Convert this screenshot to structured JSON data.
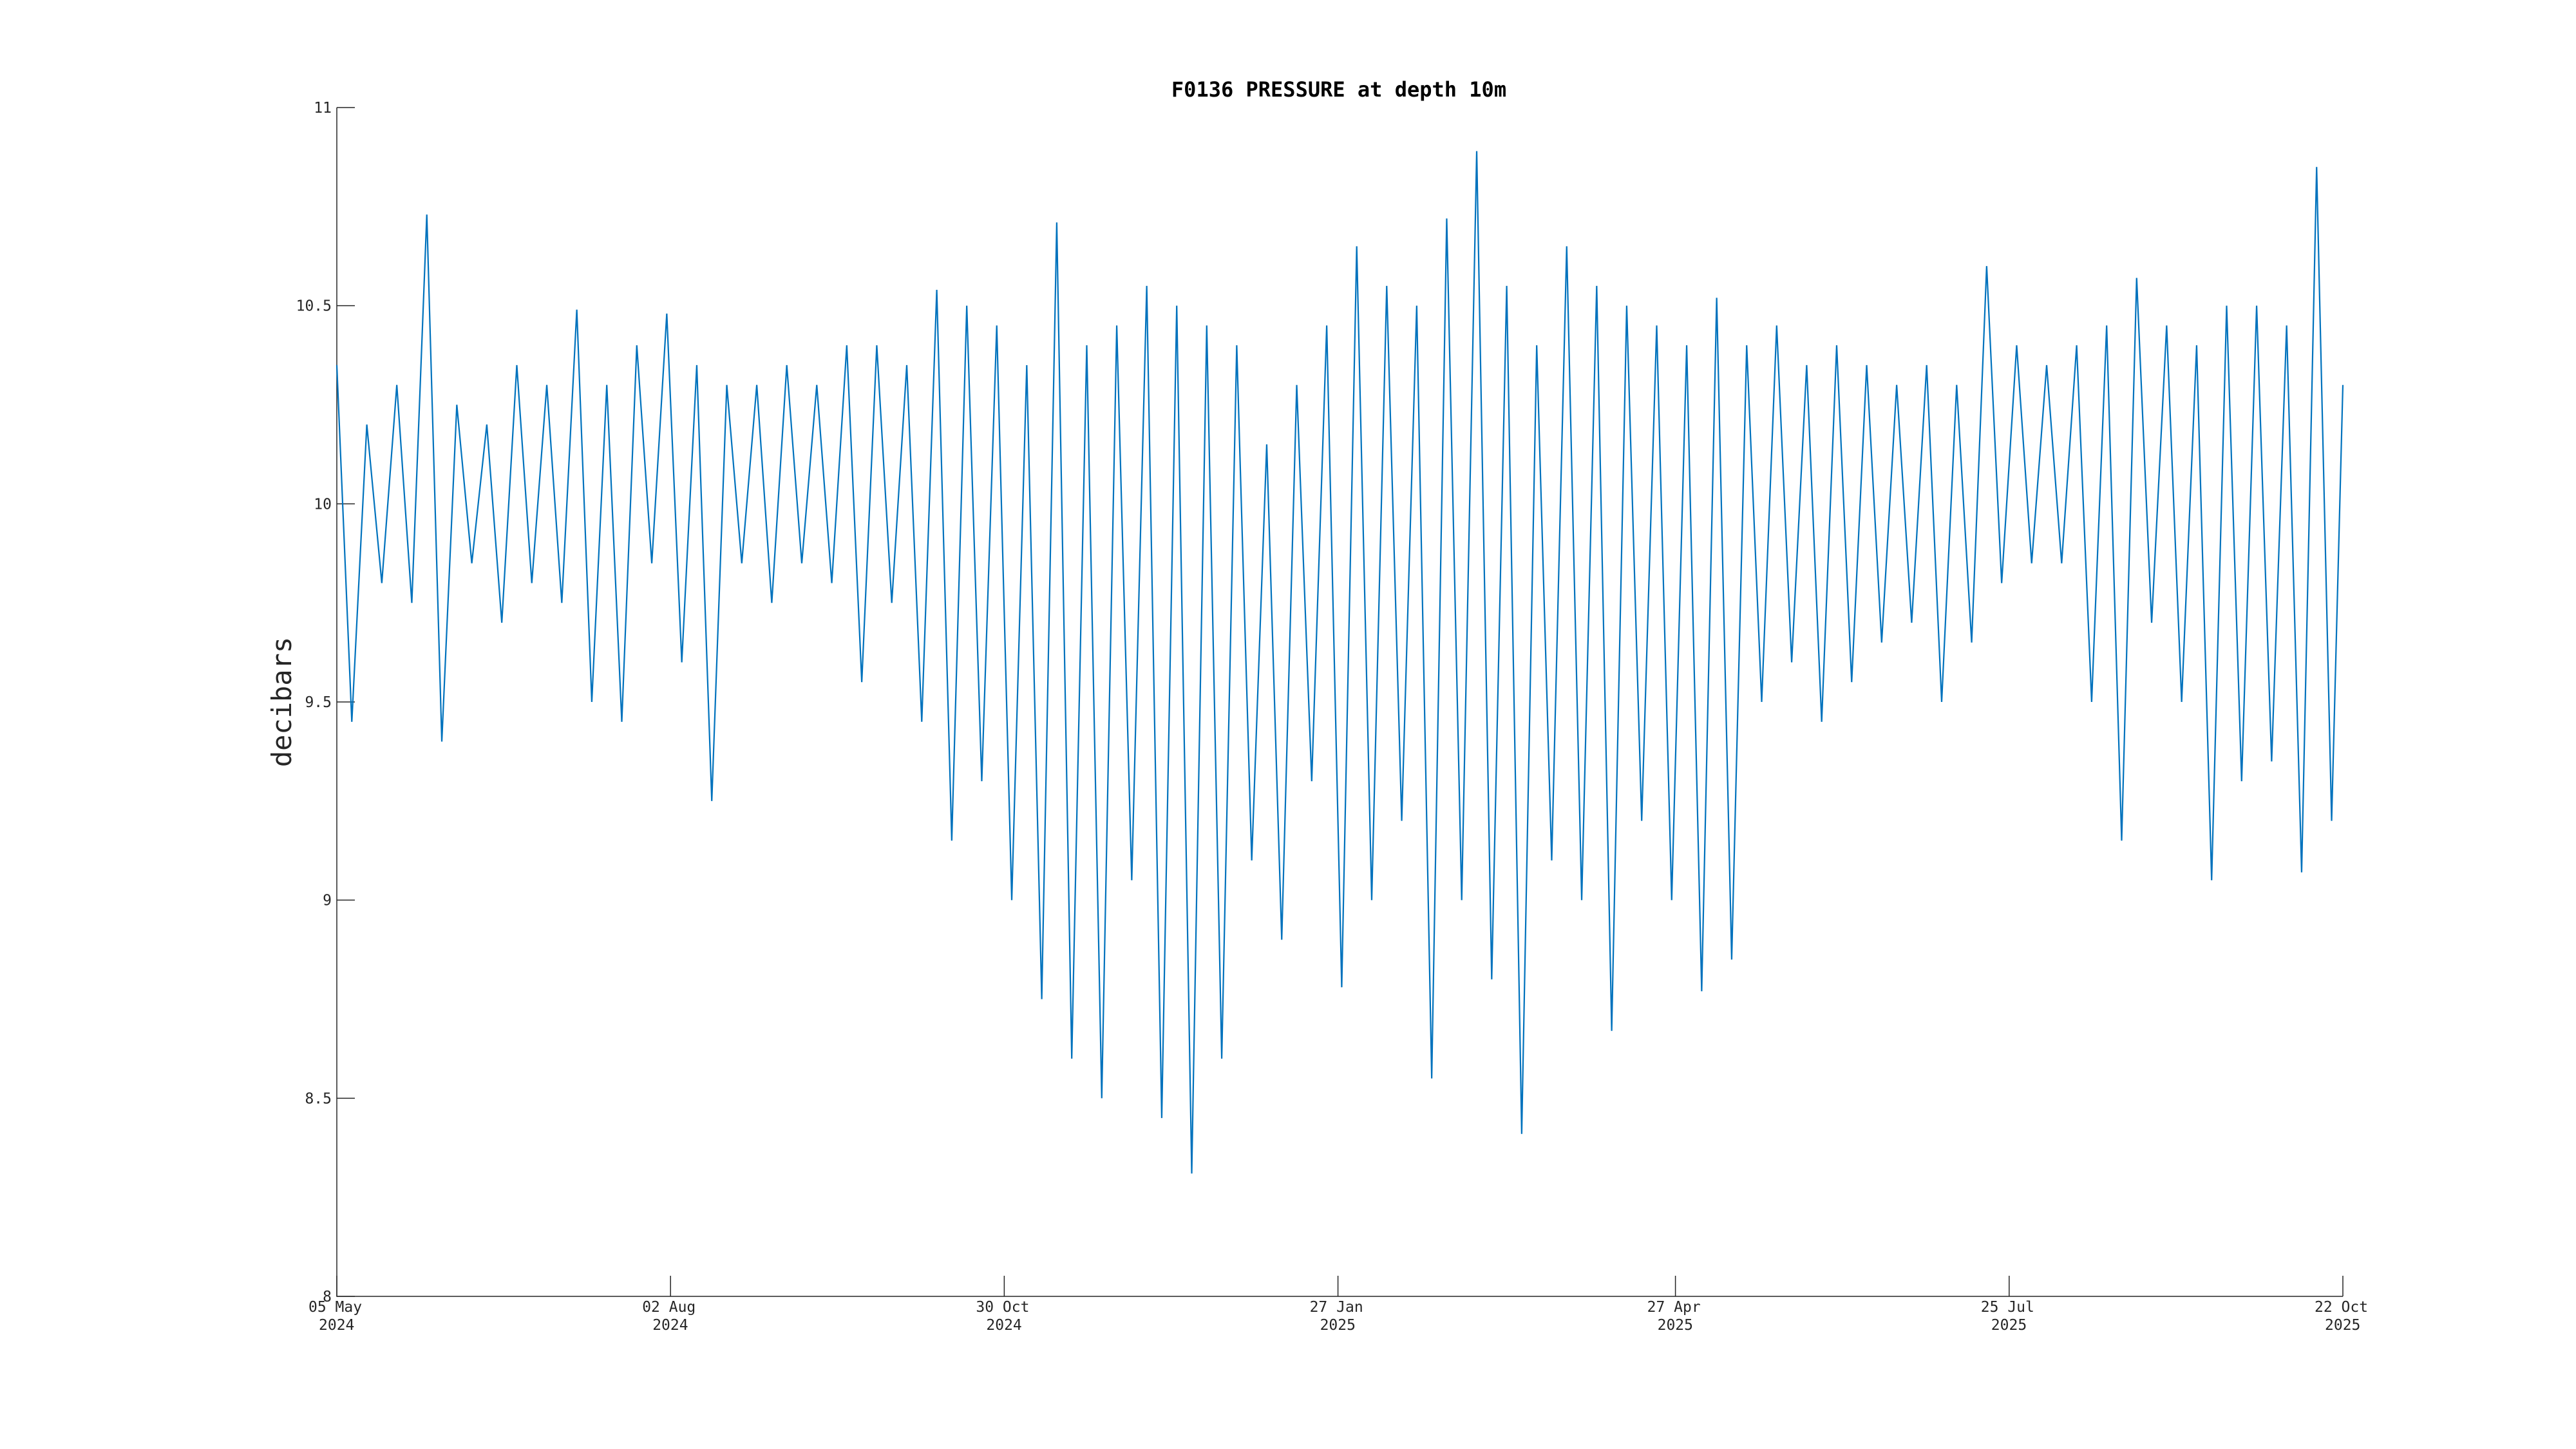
{
  "chart_data": {
    "type": "line",
    "title": "F0136 PRESSURE at depth 10m",
    "ylabel": "decibars",
    "xlim": [
      "2024-05-05",
      "2025-10-22"
    ],
    "xticks": [
      {
        "value": "2024-05-05",
        "label": "05 May\n2024"
      },
      {
        "value": "2024-08-02",
        "label": "02 Aug\n2024"
      },
      {
        "value": "2024-10-30",
        "label": "30 Oct\n2024"
      },
      {
        "value": "2025-01-27",
        "label": "27 Jan\n2025"
      },
      {
        "value": "2025-04-27",
        "label": "27 Apr\n2025"
      },
      {
        "value": "2025-07-25",
        "label": "25 Jul\n2025"
      },
      {
        "value": "2025-10-22",
        "label": "22 Oct\n2025"
      }
    ],
    "ylim": [
      8,
      11
    ],
    "yticks": [
      8,
      8.5,
      9,
      9.5,
      10,
      10.5,
      11
    ],
    "grid": false,
    "x": [
      "2024-05-05",
      "2024-05-09",
      "2024-05-13",
      "2024-05-17",
      "2024-05-21",
      "2024-05-25",
      "2024-05-29",
      "2024-06-02",
      "2024-06-06",
      "2024-06-10",
      "2024-06-14",
      "2024-06-18",
      "2024-06-22",
      "2024-06-26",
      "2024-06-30",
      "2024-07-04",
      "2024-07-08",
      "2024-07-12",
      "2024-07-16",
      "2024-07-20",
      "2024-07-24",
      "2024-07-28",
      "2024-08-01",
      "2024-08-05",
      "2024-08-09",
      "2024-08-13",
      "2024-08-17",
      "2024-08-21",
      "2024-08-25",
      "2024-08-29",
      "2024-09-02",
      "2024-09-06",
      "2024-09-10",
      "2024-09-14",
      "2024-09-18",
      "2024-09-22",
      "2024-09-26",
      "2024-09-30",
      "2024-10-04",
      "2024-10-08",
      "2024-10-12",
      "2024-10-16",
      "2024-10-20",
      "2024-10-24",
      "2024-10-28",
      "2024-11-01",
      "2024-11-05",
      "2024-11-09",
      "2024-11-13",
      "2024-11-17",
      "2024-11-21",
      "2024-11-25",
      "2024-11-29",
      "2024-12-03",
      "2024-12-07",
      "2024-12-11",
      "2024-12-15",
      "2024-12-19",
      "2024-12-23",
      "2024-12-27",
      "2024-12-31",
      "2025-01-04",
      "2025-01-08",
      "2025-01-12",
      "2025-01-16",
      "2025-01-20",
      "2025-01-24",
      "2025-01-28",
      "2025-02-01",
      "2025-02-05",
      "2025-02-09",
      "2025-02-13",
      "2025-02-17",
      "2025-02-21",
      "2025-02-25",
      "2025-03-01",
      "2025-03-05",
      "2025-03-09",
      "2025-03-13",
      "2025-03-17",
      "2025-03-21",
      "2025-03-25",
      "2025-03-29",
      "2025-04-02",
      "2025-04-06",
      "2025-04-10",
      "2025-04-14",
      "2025-04-18",
      "2025-04-22",
      "2025-04-26",
      "2025-04-30",
      "2025-05-04",
      "2025-05-08",
      "2025-05-12",
      "2025-05-16",
      "2025-05-20",
      "2025-05-24",
      "2025-05-28",
      "2025-06-01",
      "2025-06-05",
      "2025-06-09",
      "2025-06-13",
      "2025-06-17",
      "2025-06-21",
      "2025-06-25",
      "2025-06-29",
      "2025-07-03",
      "2025-07-07",
      "2025-07-11",
      "2025-07-15",
      "2025-07-19",
      "2025-07-23",
      "2025-07-27",
      "2025-07-31",
      "2025-08-04",
      "2025-08-08",
      "2025-08-12",
      "2025-08-16",
      "2025-08-20",
      "2025-08-24",
      "2025-08-28",
      "2025-09-01",
      "2025-09-05",
      "2025-09-09",
      "2025-09-13",
      "2025-09-17",
      "2025-09-21",
      "2025-09-25",
      "2025-09-29",
      "2025-10-03",
      "2025-10-07",
      "2025-10-11",
      "2025-10-15",
      "2025-10-19",
      "2025-10-22"
    ],
    "series": [
      {
        "name": "pressure",
        "color": "#0072bd",
        "values": [
          10.35,
          9.45,
          10.2,
          9.8,
          10.3,
          9.75,
          10.73,
          9.4,
          10.25,
          9.85,
          10.2,
          9.7,
          10.35,
          9.8,
          10.3,
          9.75,
          10.49,
          9.5,
          10.3,
          9.45,
          10.4,
          9.85,
          10.48,
          9.6,
          10.35,
          9.25,
          10.3,
          9.85,
          10.3,
          9.75,
          10.35,
          9.85,
          10.3,
          9.8,
          10.4,
          9.55,
          10.4,
          9.75,
          10.35,
          9.45,
          10.54,
          9.15,
          10.5,
          9.3,
          10.45,
          9.0,
          10.35,
          8.75,
          10.71,
          8.6,
          10.4,
          8.5,
          10.45,
          9.05,
          10.55,
          8.45,
          10.5,
          8.31,
          10.45,
          8.6,
          10.4,
          9.1,
          10.15,
          8.9,
          10.3,
          9.3,
          10.45,
          8.78,
          10.65,
          9.0,
          10.55,
          9.2,
          10.5,
          8.55,
          10.72,
          9.0,
          10.89,
          8.8,
          10.55,
          8.41,
          10.4,
          9.1,
          10.65,
          9.0,
          10.55,
          8.67,
          10.5,
          9.2,
          10.45,
          9.0,
          10.4,
          8.77,
          10.52,
          8.85,
          10.4,
          9.5,
          10.45,
          9.6,
          10.35,
          9.45,
          10.4,
          9.55,
          10.35,
          9.65,
          10.3,
          9.7,
          10.35,
          9.5,
          10.3,
          9.65,
          10.6,
          9.8,
          10.4,
          9.85,
          10.35,
          9.85,
          10.4,
          9.5,
          10.45,
          9.15,
          10.57,
          9.7,
          10.45,
          9.5,
          10.4,
          9.05,
          10.5,
          9.3,
          10.5,
          9.35,
          10.45,
          9.07,
          10.85,
          9.2,
          10.3
        ]
      }
    ]
  }
}
